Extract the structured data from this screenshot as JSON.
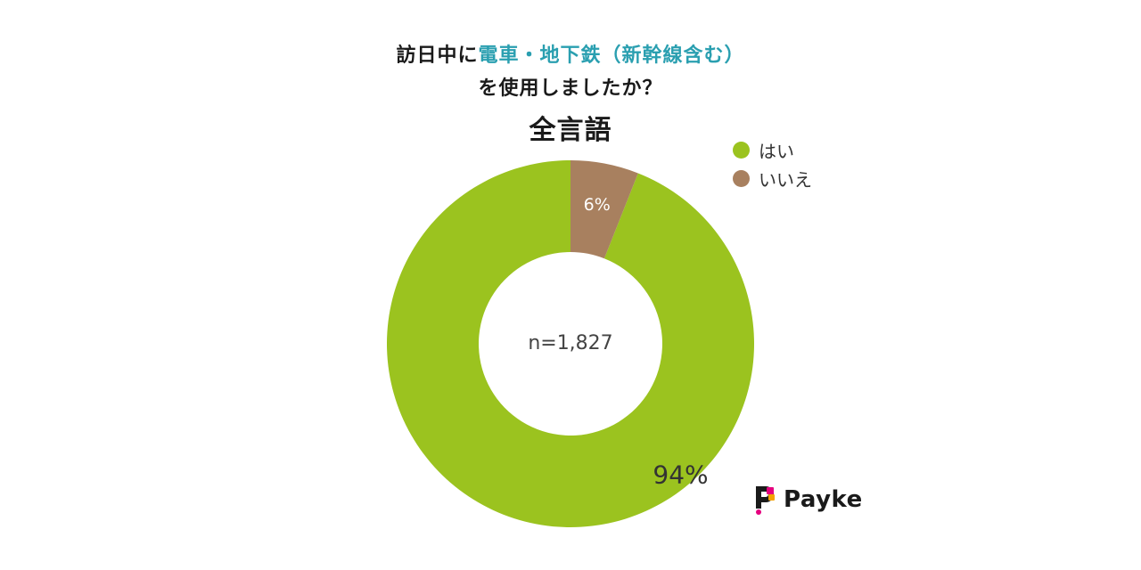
{
  "title": {
    "line1_prefix": "訪日中に",
    "line1_highlight": "電車・地下鉄（新幹線含む）",
    "line2": "を使用しましたか？",
    "highlight_color": "#2a9fb0"
  },
  "subtitle": "全言語",
  "logo": {
    "text": "Payke",
    "icon": "payke-logo-icon"
  },
  "chart_data": {
    "type": "pie",
    "style": "donut",
    "title": "訪日中に電車・地下鉄（新幹線含む）を使用しましたか？",
    "subtitle": "全言語",
    "center_label": "n=1,827",
    "series": [
      {
        "name": "はい",
        "value": 94,
        "label": "94%",
        "color": "#9bc31f"
      },
      {
        "name": "いいえ",
        "value": 6,
        "label": "6%",
        "color": "#a8805f"
      }
    ],
    "legend_position": "top-right"
  }
}
